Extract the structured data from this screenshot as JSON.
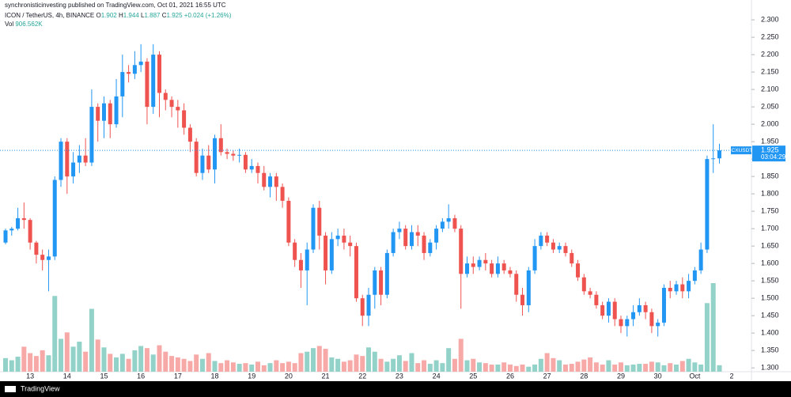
{
  "chart_data": {
    "type": "candlestick",
    "published": "synchronisticinvesting published on TradingView.com, Oct 01, 2021 16:55 UTC",
    "title": "ICON / TetherUS, 4h, BINANCE",
    "ohlc_labels": [
      "O",
      "H",
      "L",
      "C"
    ],
    "change": "+0.024 (+1.26%)",
    "vol_label": "Vol",
    "vol_value_label": "906.562K",
    "symbol": "ICXUSDT",
    "countdown": "03:04:29",
    "brand": "TradingView",
    "up_color": "#2196f3",
    "down_color": "#ef5350",
    "vol_up_color": "#92d2c8",
    "vol_down_color": "#f7a9a7",
    "grid": false,
    "categories": [
      null,
      null,
      null,
      null,
      "13",
      null,
      null,
      null,
      null,
      null,
      "14",
      null,
      null,
      null,
      null,
      null,
      "15",
      null,
      null,
      null,
      null,
      null,
      "16",
      null,
      null,
      null,
      null,
      null,
      "17",
      null,
      null,
      null,
      null,
      null,
      "18",
      null,
      null,
      null,
      null,
      null,
      "19",
      null,
      null,
      null,
      null,
      null,
      "20",
      null,
      null,
      null,
      null,
      null,
      "21",
      null,
      null,
      null,
      null,
      null,
      "22",
      null,
      null,
      null,
      null,
      null,
      "23",
      null,
      null,
      null,
      null,
      null,
      "24",
      null,
      null,
      null,
      null,
      null,
      "25",
      null,
      null,
      null,
      null,
      null,
      "26",
      null,
      null,
      null,
      null,
      null,
      "27",
      null,
      null,
      null,
      null,
      null,
      "28",
      null,
      null,
      null,
      null,
      null,
      "29",
      null,
      null,
      null,
      null,
      null,
      "30",
      null,
      null,
      null,
      null,
      null,
      "Oct",
      null,
      null,
      null,
      null,
      null,
      "2"
    ],
    "candles": [
      [
        1.66,
        1.7,
        1.655,
        1.695
      ],
      [
        1.695,
        1.705,
        1.68,
        1.7
      ],
      [
        1.7,
        1.76,
        1.695,
        1.73
      ],
      [
        1.73,
        1.775,
        1.7,
        1.725
      ],
      [
        1.725,
        1.73,
        1.64,
        1.66
      ],
      [
        1.66,
        1.665,
        1.6,
        1.625
      ],
      [
        1.625,
        1.64,
        1.58,
        1.61
      ],
      [
        1.61,
        1.64,
        1.52,
        1.62
      ],
      [
        1.62,
        1.85,
        1.61,
        1.84
      ],
      [
        1.84,
        1.96,
        1.82,
        1.95
      ],
      [
        1.95,
        1.96,
        1.8,
        1.85
      ],
      [
        1.85,
        1.92,
        1.83,
        1.89
      ],
      [
        1.89,
        1.94,
        1.86,
        1.91
      ],
      [
        1.91,
        1.96,
        1.88,
        1.89
      ],
      [
        1.89,
        2.1,
        1.88,
        2.05
      ],
      [
        2.05,
        2.06,
        1.95,
        2.01
      ],
      [
        2.01,
        2.08,
        1.96,
        2.06
      ],
      [
        2.06,
        2.07,
        1.96,
        2.0
      ],
      [
        2.0,
        2.13,
        1.99,
        2.08
      ],
      [
        2.08,
        2.2,
        2.02,
        2.15
      ],
      [
        2.15,
        2.17,
        2.12,
        2.145
      ],
      [
        2.145,
        2.21,
        2.13,
        2.17
      ],
      [
        2.17,
        2.23,
        2.15,
        2.18
      ],
      [
        2.18,
        2.19,
        2.0,
        2.05
      ],
      [
        2.05,
        2.23,
        2.03,
        2.2
      ],
      [
        2.2,
        2.21,
        2.02,
        2.09
      ],
      [
        2.09,
        2.1,
        2.04,
        2.07
      ],
      [
        2.07,
        2.08,
        2.02,
        2.05
      ],
      [
        2.05,
        2.07,
        1.99,
        2.04
      ],
      [
        2.04,
        2.06,
        1.97,
        1.99
      ],
      [
        1.99,
        2.0,
        1.92,
        1.95
      ],
      [
        1.95,
        1.96,
        1.85,
        1.86
      ],
      [
        1.86,
        1.93,
        1.84,
        1.91
      ],
      [
        1.91,
        1.94,
        1.86,
        1.87
      ],
      [
        1.87,
        1.97,
        1.83,
        1.96
      ],
      [
        1.96,
        2.0,
        1.91,
        1.92
      ],
      [
        1.92,
        1.93,
        1.9,
        1.915
      ],
      [
        1.915,
        1.925,
        1.895,
        1.91
      ],
      [
        1.91,
        1.93,
        1.89,
        1.912
      ],
      [
        1.912,
        1.92,
        1.86,
        1.87
      ],
      [
        1.87,
        1.9,
        1.86,
        1.88
      ],
      [
        1.88,
        1.89,
        1.83,
        1.86
      ],
      [
        1.86,
        1.88,
        1.81,
        1.82
      ],
      [
        1.82,
        1.86,
        1.79,
        1.85
      ],
      [
        1.85,
        1.86,
        1.78,
        1.82
      ],
      [
        1.82,
        1.83,
        1.76,
        1.78
      ],
      [
        1.78,
        1.79,
        1.65,
        1.66
      ],
      [
        1.66,
        1.67,
        1.59,
        1.61
      ],
      [
        1.61,
        1.63,
        1.53,
        1.58
      ],
      [
        1.58,
        1.66,
        1.48,
        1.64
      ],
      [
        1.64,
        1.77,
        1.63,
        1.76
      ],
      [
        1.76,
        1.78,
        1.64,
        1.68
      ],
      [
        1.68,
        1.69,
        1.54,
        1.58
      ],
      [
        1.58,
        1.69,
        1.57,
        1.67
      ],
      [
        1.67,
        1.7,
        1.65,
        1.68
      ],
      [
        1.68,
        1.7,
        1.64,
        1.66
      ],
      [
        1.66,
        1.68,
        1.62,
        1.65
      ],
      [
        1.65,
        1.66,
        1.49,
        1.5
      ],
      [
        1.5,
        1.51,
        1.42,
        1.45
      ],
      [
        1.45,
        1.53,
        1.42,
        1.51
      ],
      [
        1.51,
        1.59,
        1.47,
        1.58
      ],
      [
        1.58,
        1.59,
        1.48,
        1.51
      ],
      [
        1.51,
        1.64,
        1.5,
        1.63
      ],
      [
        1.63,
        1.7,
        1.62,
        1.69
      ],
      [
        1.69,
        1.72,
        1.67,
        1.7
      ],
      [
        1.7,
        1.71,
        1.64,
        1.65
      ],
      [
        1.65,
        1.71,
        1.64,
        1.69
      ],
      [
        1.69,
        1.71,
        1.65,
        1.68
      ],
      [
        1.68,
        1.69,
        1.61,
        1.63
      ],
      [
        1.63,
        1.67,
        1.62,
        1.66
      ],
      [
        1.66,
        1.71,
        1.64,
        1.7
      ],
      [
        1.7,
        1.73,
        1.69,
        1.72
      ],
      [
        1.72,
        1.77,
        1.7,
        1.73
      ],
      [
        1.73,
        1.74,
        1.69,
        1.7
      ],
      [
        1.7,
        1.71,
        1.47,
        1.57
      ],
      [
        1.57,
        1.62,
        1.56,
        1.6
      ],
      [
        1.6,
        1.62,
        1.57,
        1.59
      ],
      [
        1.59,
        1.62,
        1.58,
        1.61
      ],
      [
        1.61,
        1.63,
        1.58,
        1.6
      ],
      [
        1.6,
        1.61,
        1.56,
        1.57
      ],
      [
        1.57,
        1.62,
        1.56,
        1.6
      ],
      [
        1.6,
        1.61,
        1.57,
        1.58
      ],
      [
        1.58,
        1.59,
        1.56,
        1.57
      ],
      [
        1.57,
        1.58,
        1.49,
        1.51
      ],
      [
        1.51,
        1.53,
        1.45,
        1.48
      ],
      [
        1.48,
        1.59,
        1.46,
        1.58
      ],
      [
        1.58,
        1.67,
        1.57,
        1.65
      ],
      [
        1.65,
        1.69,
        1.64,
        1.68
      ],
      [
        1.68,
        1.69,
        1.65,
        1.66
      ],
      [
        1.66,
        1.67,
        1.63,
        1.64
      ],
      [
        1.64,
        1.66,
        1.63,
        1.65
      ],
      [
        1.65,
        1.66,
        1.62,
        1.63
      ],
      [
        1.63,
        1.64,
        1.59,
        1.6
      ],
      [
        1.6,
        1.61,
        1.55,
        1.56
      ],
      [
        1.56,
        1.57,
        1.51,
        1.52
      ],
      [
        1.52,
        1.53,
        1.5,
        1.51
      ],
      [
        1.51,
        1.52,
        1.47,
        1.48
      ],
      [
        1.48,
        1.49,
        1.44,
        1.45
      ],
      [
        1.45,
        1.5,
        1.43,
        1.49
      ],
      [
        1.49,
        1.5,
        1.42,
        1.44
      ],
      [
        1.44,
        1.45,
        1.4,
        1.42
      ],
      [
        1.42,
        1.45,
        1.39,
        1.44
      ],
      [
        1.44,
        1.48,
        1.42,
        1.46
      ],
      [
        1.46,
        1.5,
        1.45,
        1.48
      ],
      [
        1.48,
        1.49,
        1.44,
        1.46
      ],
      [
        1.46,
        1.47,
        1.4,
        1.42
      ],
      [
        1.42,
        1.44,
        1.39,
        1.43
      ],
      [
        1.43,
        1.54,
        1.42,
        1.53
      ],
      [
        1.53,
        1.55,
        1.5,
        1.52
      ],
      [
        1.52,
        1.55,
        1.51,
        1.54
      ],
      [
        1.54,
        1.56,
        1.5,
        1.52
      ],
      [
        1.52,
        1.57,
        1.5,
        1.55
      ],
      [
        1.55,
        1.59,
        1.54,
        1.58
      ],
      [
        1.58,
        1.66,
        1.57,
        1.64
      ],
      [
        1.64,
        1.91,
        1.63,
        1.9
      ],
      [
        1.9,
        2.0,
        1.86,
        1.902
      ],
      [
        1.902,
        1.944,
        1.887,
        1.925
      ],
      null,
      null
    ],
    "volume": [
      1900000,
      1600000,
      2100000,
      3500000,
      2600000,
      2200000,
      3000000,
      2300000,
      10600000,
      4600000,
      5500000,
      3500000,
      4200000,
      2800000,
      8800000,
      4500000,
      3400000,
      2500000,
      2000000,
      2500000,
      1800000,
      3000000,
      3600000,
      3300000,
      2400000,
      3700000,
      2800000,
      2200000,
      2000000,
      1800000,
      1500000,
      2400000,
      1800000,
      2600000,
      1500000,
      1200000,
      1600000,
      1300000,
      1100000,
      1200000,
      1000000,
      1400000,
      900000,
      1200000,
      1600000,
      1200000,
      1400000,
      1200000,
      2600000,
      2800000,
      3300000,
      3600000,
      3200000,
      2000000,
      1800000,
      1400000,
      1600000,
      2400000,
      2200000,
      3400000,
      2800000,
      1800000,
      1400000,
      1800000,
      2300000,
      1500000,
      2600000,
      1200000,
      1600000,
      1100000,
      1600000,
      1200000,
      3300000,
      1800000,
      4600000,
      1600000,
      1800000,
      1300000,
      1200000,
      1000000,
      1000000,
      1300000,
      1000000,
      800000,
      1000000,
      700000,
      1000000,
      1800000,
      2600000,
      1900000,
      1600000,
      1000000,
      1100000,
      1400000,
      1700000,
      2000000,
      1300000,
      1000000,
      1600000,
      1000000,
      1300000,
      900000,
      1000000,
      1100000,
      1100000,
      1400000,
      1300000,
      900000,
      1200000,
      1000000,
      1500000,
      1800000,
      1300000,
      1000000,
      9600000,
      12400000,
      906562,
      null,
      null
    ],
    "ylim": [
      1.289,
      2.357
    ],
    "yticks": [
      {
        "value": 1.3,
        "label": "1.300"
      },
      {
        "value": 1.35,
        "label": "1.350"
      },
      {
        "value": 1.4,
        "label": "1.400"
      },
      {
        "value": 1.45,
        "label": "1.450"
      },
      {
        "value": 1.5,
        "label": "1.500"
      },
      {
        "value": 1.55,
        "label": "1.550"
      },
      {
        "value": 1.6,
        "label": "1.600"
      },
      {
        "value": 1.65,
        "label": "1.650"
      },
      {
        "value": 1.7,
        "label": "1.700"
      },
      {
        "value": 1.75,
        "label": "1.750"
      },
      {
        "value": 1.8,
        "label": "1.800"
      },
      {
        "value": 1.85,
        "label": "1.850"
      },
      {
        "value": 1.9,
        "label": "1.900"
      },
      {
        "value": 1.95,
        "label": "1.950"
      },
      {
        "value": 2.0,
        "label": "2.000"
      },
      {
        "value": 2.05,
        "label": "2.050"
      },
      {
        "value": 2.1,
        "label": "2.100"
      },
      {
        "value": 2.15,
        "label": "2.150"
      },
      {
        "value": 2.2,
        "label": "2.200"
      },
      {
        "value": 2.25,
        "label": "2.250"
      },
      {
        "value": 2.3,
        "label": "2.300"
      }
    ]
  }
}
